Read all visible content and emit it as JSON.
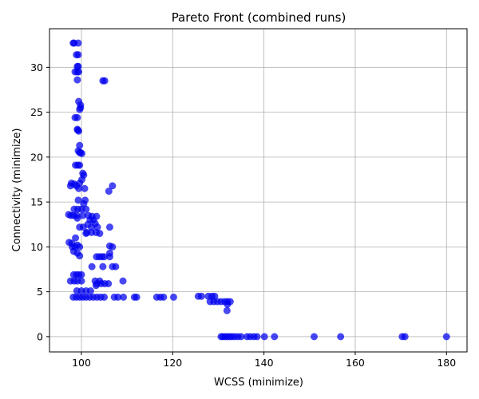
{
  "chart_data": {
    "type": "scatter",
    "title": "Pareto Front (combined runs)",
    "xlabel": "WCSS (minimize)",
    "ylabel": "Connectivity (minimize)",
    "xlim": [
      93,
      184.5
    ],
    "ylim": [
      -1.7,
      34.3
    ],
    "xticks": [
      100,
      120,
      140,
      160,
      180
    ],
    "yticks": [
      0,
      5,
      10,
      15,
      20,
      25,
      30
    ],
    "grid": true,
    "marker_color": "#0000ee",
    "marker_opacity": 0.72,
    "series": [
      {
        "points": [
          [
            98.2,
            32.7
          ],
          [
            98.4,
            32.7
          ],
          [
            99.3,
            32.7
          ],
          [
            98.9,
            31.4
          ],
          [
            99.3,
            31.4
          ],
          [
            99.1,
            30.1
          ],
          [
            99.3,
            30.1
          ],
          [
            98.6,
            29.5
          ],
          [
            99.1,
            29.5
          ],
          [
            99.4,
            29.5
          ],
          [
            99.1,
            28.6
          ],
          [
            104.7,
            28.5
          ],
          [
            105.1,
            28.5
          ],
          [
            99.4,
            26.2
          ],
          [
            99.8,
            25.8
          ],
          [
            99.8,
            25.5
          ],
          [
            99.6,
            25.3
          ],
          [
            98.6,
            24.4
          ],
          [
            99.1,
            24.4
          ],
          [
            99.1,
            23.1
          ],
          [
            99.2,
            23.0
          ],
          [
            99.4,
            22.9
          ],
          [
            99.6,
            21.3
          ],
          [
            99.3,
            20.7
          ],
          [
            99.6,
            20.5
          ],
          [
            99.8,
            20.5
          ],
          [
            100.1,
            20.4
          ],
          [
            98.7,
            19.1
          ],
          [
            99.2,
            19.1
          ],
          [
            99.6,
            19.1
          ],
          [
            100.3,
            18.2
          ],
          [
            100.5,
            18.0
          ],
          [
            100.1,
            17.5
          ],
          [
            99.6,
            17.1
          ],
          [
            97.8,
            17.1
          ],
          [
            98.4,
            17.0
          ],
          [
            97.6,
            16.8
          ],
          [
            98.9,
            16.8
          ],
          [
            106.8,
            16.8
          ],
          [
            99.4,
            16.5
          ],
          [
            100.7,
            16.5
          ],
          [
            106.0,
            16.2
          ],
          [
            100.8,
            15.2
          ],
          [
            99.3,
            15.2
          ],
          [
            100.5,
            14.8
          ],
          [
            98.4,
            14.2
          ],
          [
            99.2,
            14.2
          ],
          [
            100.0,
            14.2
          ],
          [
            101.0,
            14.2
          ],
          [
            97.2,
            13.6
          ],
          [
            97.7,
            13.5
          ],
          [
            98.3,
            13.5
          ],
          [
            99.0,
            13.5
          ],
          [
            100.3,
            13.5
          ],
          [
            101.5,
            13.5
          ],
          [
            102.3,
            13.4
          ],
          [
            103.3,
            13.4
          ],
          [
            99.1,
            13.2
          ],
          [
            101.9,
            13.0
          ],
          [
            102.6,
            13.0
          ],
          [
            103.0,
            12.6
          ],
          [
            101.4,
            12.5
          ],
          [
            103.5,
            12.2
          ],
          [
            99.6,
            12.2
          ],
          [
            100.4,
            12.2
          ],
          [
            102.2,
            12.2
          ],
          [
            106.2,
            12.2
          ],
          [
            101.2,
            11.6
          ],
          [
            102.2,
            11.6
          ],
          [
            103.2,
            11.6
          ],
          [
            104.0,
            11.5
          ],
          [
            101.0,
            11.5
          ],
          [
            98.7,
            11.0
          ],
          [
            97.3,
            10.5
          ],
          [
            97.9,
            10.4
          ],
          [
            99.1,
            10.2
          ],
          [
            98.0,
            10.0
          ],
          [
            98.6,
            10.0
          ],
          [
            99.6,
            10.0
          ],
          [
            106.2,
            10.1
          ],
          [
            106.8,
            10.0
          ],
          [
            98.3,
            9.5
          ],
          [
            99.1,
            9.3
          ],
          [
            106.2,
            9.3
          ],
          [
            99.6,
            9.0
          ],
          [
            103.3,
            8.9
          ],
          [
            103.9,
            8.9
          ],
          [
            104.5,
            8.9
          ],
          [
            105.0,
            8.9
          ],
          [
            106.2,
            8.9
          ],
          [
            102.3,
            7.8
          ],
          [
            104.7,
            7.8
          ],
          [
            106.8,
            7.8
          ],
          [
            107.5,
            7.8
          ],
          [
            98.3,
            6.9
          ],
          [
            98.9,
            6.9
          ],
          [
            99.4,
            6.9
          ],
          [
            100.0,
            6.9
          ],
          [
            97.6,
            6.2
          ],
          [
            98.4,
            6.2
          ],
          [
            99.1,
            6.2
          ],
          [
            100.0,
            6.2
          ],
          [
            103.0,
            6.2
          ],
          [
            104.0,
            6.2
          ],
          [
            109.1,
            6.2
          ],
          [
            103.4,
            5.9
          ],
          [
            104.3,
            5.9
          ],
          [
            105.1,
            5.9
          ],
          [
            105.9,
            5.9
          ],
          [
            103.2,
            5.7
          ],
          [
            99.0,
            5.1
          ],
          [
            100.0,
            5.1
          ],
          [
            101.0,
            5.1
          ],
          [
            102.0,
            5.1
          ],
          [
            98.2,
            4.4
          ],
          [
            98.9,
            4.4
          ],
          [
            99.6,
            4.4
          ],
          [
            100.3,
            4.4
          ],
          [
            101.0,
            4.4
          ],
          [
            101.8,
            4.4
          ],
          [
            102.6,
            4.4
          ],
          [
            103.4,
            4.4
          ],
          [
            104.2,
            4.4
          ],
          [
            105.0,
            4.4
          ],
          [
            107.2,
            4.4
          ],
          [
            108.0,
            4.4
          ],
          [
            109.2,
            4.4
          ],
          [
            111.6,
            4.4
          ],
          [
            112.1,
            4.4
          ],
          [
            116.5,
            4.4
          ],
          [
            117.3,
            4.4
          ],
          [
            118.0,
            4.4
          ],
          [
            120.2,
            4.4
          ],
          [
            125.6,
            4.5
          ],
          [
            126.3,
            4.5
          ],
          [
            127.8,
            4.5
          ],
          [
            128.6,
            4.5
          ],
          [
            129.2,
            4.5
          ],
          [
            128.2,
            3.9
          ],
          [
            129.0,
            3.9
          ],
          [
            129.8,
            3.9
          ],
          [
            130.6,
            3.9
          ],
          [
            131.4,
            3.9
          ],
          [
            132.0,
            3.9
          ],
          [
            132.6,
            3.9
          ],
          [
            132.0,
            3.6
          ],
          [
            131.9,
            2.9
          ],
          [
            130.6,
            0
          ],
          [
            131.0,
            0
          ],
          [
            131.5,
            0
          ],
          [
            132.0,
            0
          ],
          [
            132.5,
            0
          ],
          [
            133.0,
            0
          ],
          [
            133.6,
            0
          ],
          [
            134.3,
            0
          ],
          [
            135.0,
            0
          ],
          [
            136.3,
            0
          ],
          [
            137.0,
            0
          ],
          [
            137.8,
            0
          ],
          [
            138.5,
            0
          ],
          [
            140.1,
            0
          ],
          [
            142.3,
            0
          ],
          [
            151.0,
            0
          ],
          [
            156.8,
            0
          ],
          [
            170.3,
            0
          ],
          [
            170.9,
            0
          ],
          [
            180.0,
            0
          ]
        ]
      }
    ]
  }
}
